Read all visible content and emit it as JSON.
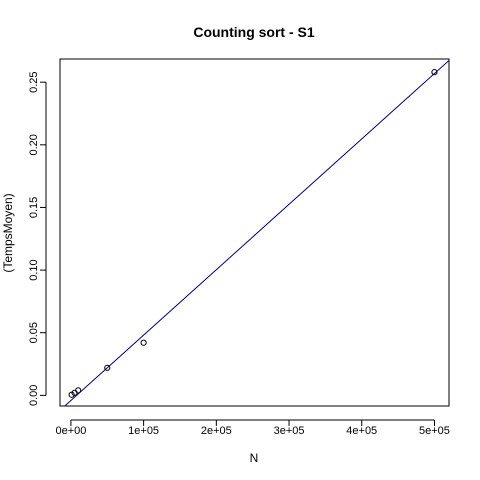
{
  "chart_data": {
    "type": "scatter",
    "title": "Counting sort - S1",
    "xlabel": "N",
    "ylabel": "(TempsMoyen)",
    "xlim": [
      -15000,
      520000
    ],
    "ylim": [
      -0.0085,
      0.2685
    ],
    "x_ticks": [
      0,
      100000,
      200000,
      300000,
      400000,
      500000
    ],
    "x_tick_labels": [
      "0e+00",
      "1e+05",
      "2e+05",
      "3e+05",
      "4e+05",
      "5e+05"
    ],
    "y_ticks": [
      0,
      0.05,
      0.1,
      0.15,
      0.2,
      0.25
    ],
    "y_tick_labels": [
      "0.00",
      "0.05",
      "0.10",
      "0.15",
      "0.20",
      "0.25"
    ],
    "points": [
      {
        "x": 1000,
        "y": 0.0005
      },
      {
        "x": 5000,
        "y": 0.002
      },
      {
        "x": 10000,
        "y": 0.004
      },
      {
        "x": 50000,
        "y": 0.022
      },
      {
        "x": 100000,
        "y": 0.042
      },
      {
        "x": 500000,
        "y": 0.258
      }
    ],
    "fit_line": {
      "intercept": -0.0041,
      "slope": 5.22e-07
    },
    "colors": {
      "points": "#000000",
      "fit_line": "#00008b",
      "frame": "#000000"
    },
    "grid": false,
    "legend": "none"
  }
}
